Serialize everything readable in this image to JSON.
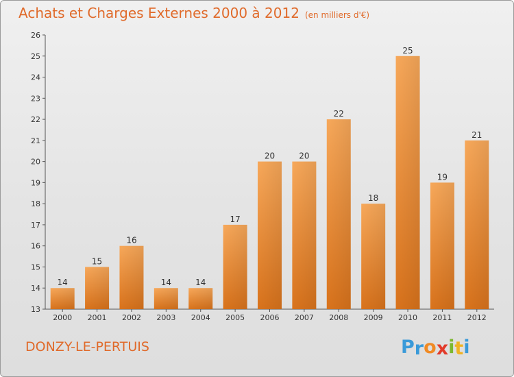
{
  "chart_data": {
    "type": "bar",
    "title": "Achats et Charges Externes 2000 à 2012",
    "subtitle": "(en milliers d'€)",
    "categories": [
      "2000",
      "2001",
      "2002",
      "2003",
      "2004",
      "2005",
      "2006",
      "2007",
      "2008",
      "2009",
      "2010",
      "2011",
      "2012"
    ],
    "values": [
      14,
      15,
      16,
      14,
      14,
      17,
      20,
      20,
      22,
      18,
      25,
      19,
      21
    ],
    "xlabel": "",
    "ylabel": "",
    "ylim": [
      13,
      26
    ],
    "yticks": [
      13,
      14,
      15,
      16,
      17,
      18,
      19,
      20,
      21,
      22,
      23,
      24,
      25,
      26
    ],
    "grid": false,
    "legend": "none",
    "bar_color": "#f0913a"
  },
  "footer": {
    "commune": "DONZY-LE-PERTUIS",
    "brand_letters": [
      {
        "ch": "P",
        "color": "#3a9ad9"
      },
      {
        "ch": "r",
        "color": "#3a9ad9"
      },
      {
        "ch": "o",
        "color": "#f08a24"
      },
      {
        "ch": "x",
        "color": "#e23b2a"
      },
      {
        "ch": "i",
        "color": "#7cb82f"
      },
      {
        "ch": "t",
        "color": "#f0b323"
      },
      {
        "ch": "i",
        "color": "#3a9ad9"
      }
    ]
  }
}
